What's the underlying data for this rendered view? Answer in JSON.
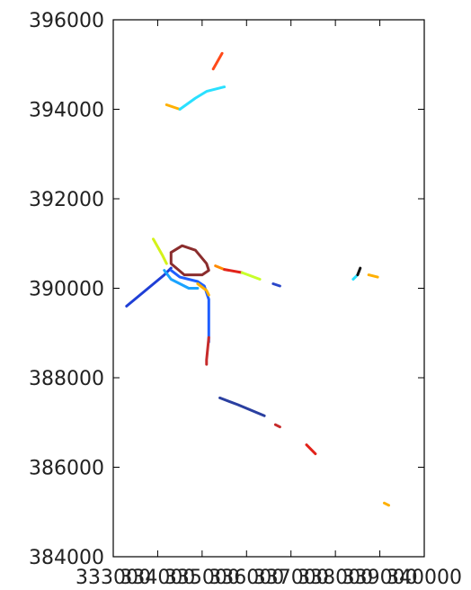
{
  "chart_data": {
    "type": "line",
    "title": "",
    "xlabel": "",
    "ylabel": "",
    "xlim": [
      333000,
      340000
    ],
    "ylim": [
      384000,
      396000
    ],
    "x_ticks": [
      333000,
      334000,
      335000,
      336000,
      337000,
      338000,
      339000,
      340000
    ],
    "x_tick_labels": [
      "333000",
      "334000",
      "335000",
      "336000",
      "337000",
      "338000",
      "339000",
      "340000"
    ],
    "y_ticks": [
      384000,
      386000,
      388000,
      390000,
      392000,
      394000,
      396000
    ],
    "y_tick_labels": [
      "384000",
      "386000",
      "388000",
      "390000",
      "392000",
      "394000",
      "396000"
    ],
    "grid": false,
    "series": [
      {
        "color": "#1f3fd6",
        "points": [
          [
            333300,
            389600
          ],
          [
            334150,
            390300
          ],
          [
            334300,
            390450
          ]
        ]
      },
      {
        "color": "#1f5fff",
        "points": [
          [
            334300,
            390400
          ],
          [
            334500,
            390250
          ],
          [
            334900,
            390150
          ],
          [
            335050,
            390050
          ],
          [
            335150,
            389750
          ],
          [
            335150,
            389200
          ],
          [
            335150,
            388800
          ]
        ]
      },
      {
        "color": "#1aa3ff",
        "points": [
          [
            334150,
            390400
          ],
          [
            334300,
            390200
          ],
          [
            334700,
            390000
          ],
          [
            334900,
            390000
          ]
        ]
      },
      {
        "color": "#d4f21a",
        "points": [
          [
            333900,
            391100
          ],
          [
            334100,
            390750
          ],
          [
            334200,
            390550
          ]
        ]
      },
      {
        "color": "#ffb000",
        "points": [
          [
            334900,
            390100
          ],
          [
            335100,
            389950
          ],
          [
            335150,
            389850
          ]
        ]
      },
      {
        "color": "#8b2d2d",
        "points": [
          [
            334300,
            390800
          ],
          [
            334550,
            390950
          ],
          [
            334850,
            390850
          ],
          [
            335100,
            390550
          ],
          [
            335150,
            390400
          ],
          [
            335000,
            390300
          ],
          [
            334600,
            390300
          ],
          [
            334300,
            390550
          ],
          [
            334300,
            390800
          ]
        ]
      },
      {
        "color": "#c62a2a",
        "points": [
          [
            335150,
            388900
          ],
          [
            335100,
            388400
          ],
          [
            335100,
            388300
          ]
        ]
      },
      {
        "color": "#ff8a00",
        "points": [
          [
            335300,
            390500
          ],
          [
            335500,
            390420
          ]
        ]
      },
      {
        "color": "#e2231a",
        "points": [
          [
            335500,
            390420
          ],
          [
            335900,
            390350
          ]
        ]
      },
      {
        "color": "#c8ff2a",
        "points": [
          [
            335900,
            390350
          ],
          [
            336300,
            390200
          ]
        ]
      },
      {
        "color": "#2a46c9",
        "points": [
          [
            336600,
            390100
          ],
          [
            336750,
            390050
          ]
        ]
      },
      {
        "color": "#ffb000",
        "points": [
          [
            334200,
            394100
          ],
          [
            334500,
            394000
          ]
        ]
      },
      {
        "color": "#2ae0ff",
        "points": [
          [
            334500,
            394000
          ],
          [
            334850,
            394250
          ],
          [
            335100,
            394400
          ],
          [
            335500,
            394500
          ]
        ]
      },
      {
        "color": "#ff4a1a",
        "points": [
          [
            335250,
            394900
          ],
          [
            335450,
            395250
          ]
        ]
      },
      {
        "color": "#2a3fa0",
        "points": [
          [
            335400,
            387550
          ],
          [
            335800,
            387400
          ],
          [
            336400,
            387150
          ]
        ]
      },
      {
        "color": "#c62a2a",
        "points": [
          [
            336650,
            386950
          ],
          [
            336750,
            386900
          ]
        ]
      },
      {
        "color": "#e2231a",
        "points": [
          [
            337350,
            386500
          ],
          [
            337550,
            386300
          ]
        ]
      },
      {
        "color": "#2ae0ff",
        "points": [
          [
            338400,
            390200
          ],
          [
            338500,
            390300
          ]
        ]
      },
      {
        "color": "#111111",
        "points": [
          [
            338500,
            390300
          ],
          [
            338560,
            390450
          ]
        ]
      },
      {
        "color": "#ffb000",
        "points": [
          [
            338750,
            390300
          ],
          [
            338950,
            390250
          ]
        ]
      },
      {
        "color": "#ffb000",
        "points": [
          [
            339100,
            385200
          ],
          [
            339200,
            385150
          ]
        ]
      }
    ]
  }
}
